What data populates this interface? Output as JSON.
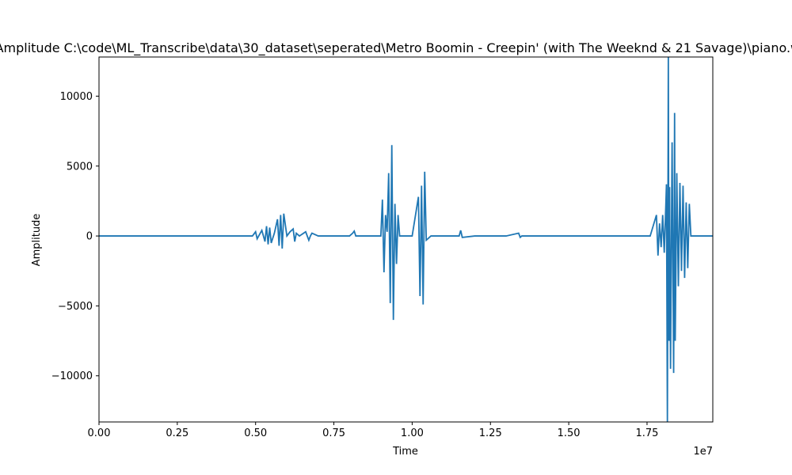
{
  "chart_data": {
    "type": "line",
    "title": "Amplitude C:\\code\\ML_Transcribe\\data\\30_dataset\\seperated\\Metro Boomin - Creepin' (with The Weeknd & 21 Savage)\\piano.wav",
    "xlabel": "Time",
    "ylabel": "Amplitude",
    "x_offset_text": "1e7",
    "xlim": [
      0,
      1.96
    ],
    "ylim": [
      -13300,
      12800
    ],
    "x_scale_note": "x values in units of 1e7 samples",
    "xticks": [
      0.0,
      0.25,
      0.5,
      0.75,
      1.0,
      1.25,
      1.5,
      1.75
    ],
    "xtick_labels": [
      "0.00",
      "0.25",
      "0.50",
      "0.75",
      "1.00",
      "1.25",
      "1.50",
      "1.75"
    ],
    "yticks": [
      -10000,
      -5000,
      0,
      5000,
      10000
    ],
    "ytick_labels": [
      "−10000",
      "−5000",
      "0",
      "5000",
      "10000"
    ],
    "grid": false,
    "line_color": "#1f77b4",
    "series": [
      {
        "x": [
          0,
          0.02,
          0.05,
          0.06,
          0.1,
          0.25,
          0.26,
          0.31,
          0.46,
          0.47,
          0.49,
          0.5,
          0.505,
          0.51,
          0.52,
          0.53,
          0.535,
          0.54,
          0.545,
          0.55,
          0.56,
          0.57,
          0.575,
          0.58,
          0.585,
          0.59,
          0.6,
          0.61,
          0.62,
          0.625,
          0.63,
          0.64,
          0.66,
          0.67,
          0.675,
          0.68,
          0.7,
          0.75,
          0.8,
          0.81,
          0.815,
          0.82,
          0.85,
          0.88,
          0.9,
          0.905,
          0.91,
          0.915,
          0.92,
          0.925,
          0.93,
          0.935,
          0.94,
          0.945,
          0.95,
          0.955,
          0.96,
          0.97,
          1.0,
          1.02,
          1.025,
          1.03,
          1.035,
          1.04,
          1.045,
          1.06,
          1.1,
          1.15,
          1.155,
          1.16,
          1.2,
          1.3,
          1.34,
          1.345,
          1.35,
          1.4,
          1.45,
          1.5,
          1.55,
          1.6,
          1.65,
          1.7,
          1.76,
          1.78,
          1.785,
          1.79,
          1.795,
          1.8,
          1.805,
          1.81,
          1.812,
          1.815,
          1.818,
          1.82,
          1.822,
          1.825,
          1.83,
          1.835,
          1.838,
          1.84,
          1.845,
          1.85,
          1.855,
          1.86,
          1.865,
          1.87,
          1.875,
          1.88,
          1.885,
          1.89,
          1.9,
          1.96
        ],
        "y": [
          0,
          0,
          0,
          0,
          0,
          0,
          0,
          0,
          0,
          0,
          0,
          300,
          -200,
          0,
          400,
          -400,
          700,
          -600,
          600,
          -500,
          200,
          1200,
          -700,
          1500,
          -900,
          1600,
          0,
          300,
          500,
          -400,
          200,
          0,
          300,
          -300,
          0,
          200,
          0,
          0,
          0,
          200,
          350,
          0,
          0,
          0,
          0,
          2600,
          -2600,
          1500,
          300,
          4500,
          -4800,
          6500,
          -6000,
          2300,
          -2000,
          1500,
          0,
          0,
          0,
          2800,
          -4300,
          3600,
          -4900,
          4600,
          -300,
          0,
          0,
          0,
          400,
          -100,
          0,
          0,
          200,
          -100,
          0,
          0,
          0,
          0,
          0,
          0,
          0,
          0,
          0,
          1500,
          -1400,
          900,
          -800,
          1500,
          -1200,
          2200,
          3700,
          -13300,
          12800,
          -7500,
          3500,
          -9500,
          6700,
          -9800,
          8800,
          -7500,
          4500,
          -3600,
          3800,
          -2500,
          3600,
          -3000,
          2400,
          -2300,
          2300,
          0,
          0,
          0
        ]
      }
    ]
  }
}
